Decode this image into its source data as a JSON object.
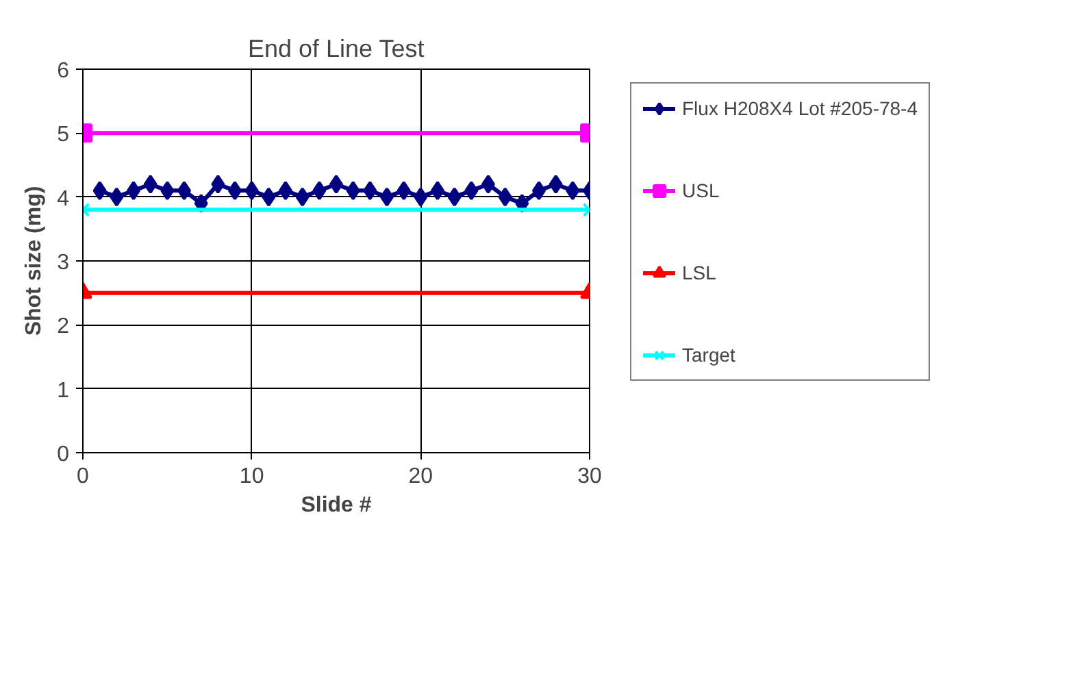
{
  "chart_data": {
    "type": "line",
    "title": "End of Line Test",
    "xlabel": "Slide #",
    "ylabel": "Shot size (mg)",
    "xlim": [
      0,
      30
    ],
    "xticks": [
      0,
      10,
      20,
      30
    ],
    "ylim": [
      0,
      6
    ],
    "yticks": [
      0,
      1,
      2,
      3,
      4,
      5,
      6
    ],
    "grid": true,
    "legend": "right",
    "series": [
      {
        "name": "Flux H208X4 Lot #205-78-4",
        "color": "#000080",
        "marker": "diamond",
        "x": [
          1,
          2,
          3,
          4,
          5,
          6,
          7,
          8,
          9,
          10,
          11,
          12,
          13,
          14,
          15,
          16,
          17,
          18,
          19,
          20,
          21,
          22,
          23,
          24,
          25,
          26,
          27,
          28,
          29,
          30
        ],
        "values": [
          4.1,
          4.0,
          4.1,
          4.2,
          4.1,
          4.1,
          3.9,
          4.2,
          4.1,
          4.1,
          4.0,
          4.1,
          4.0,
          4.1,
          4.2,
          4.1,
          4.1,
          4.0,
          4.1,
          4.0,
          4.1,
          4.0,
          4.1,
          4.2,
          4.0,
          3.9,
          4.1,
          4.2,
          4.1,
          4.1
        ]
      },
      {
        "name": "USL",
        "color": "#ff00ff",
        "marker": "square",
        "x": [
          0,
          30
        ],
        "values": [
          5,
          5
        ]
      },
      {
        "name": "LSL",
        "color": "#ff0000",
        "marker": "triangle",
        "x": [
          0,
          30
        ],
        "values": [
          2.5,
          2.5
        ]
      },
      {
        "name": "Target",
        "color": "#00ffff",
        "marker": "cross",
        "x": [
          0,
          30
        ],
        "values": [
          3.8,
          3.8
        ]
      }
    ]
  }
}
